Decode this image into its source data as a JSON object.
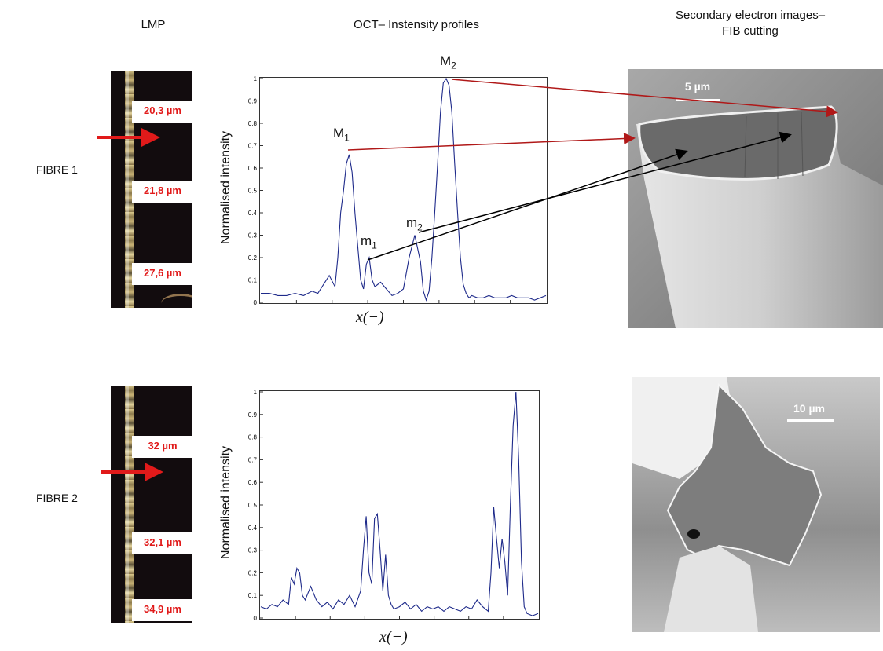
{
  "headers": {
    "lmp": "LMP",
    "oct": "OCT– Instensity profiles",
    "sem_line1": "Secondary electron images–",
    "sem_line2": "FIB cutting"
  },
  "rows": [
    {
      "label": "FIBRE 1",
      "measurements": [
        "20,3 µm",
        "21,8 µm",
        "27,6 µm"
      ],
      "scale_bar": "5 µm"
    },
    {
      "label": "FIBRE 2",
      "measurements": [
        "32 µm",
        "32,1 µm",
        "34,9 µm"
      ],
      "scale_bar": "10 µm"
    }
  ],
  "peak_labels": {
    "M1": "M",
    "M1_sub": "1",
    "M2": "M",
    "M2_sub": "2",
    "m1": "m",
    "m1_sub": "1",
    "m2": "m",
    "m2_sub": "2"
  },
  "colors": {
    "measurement_text": "#e11a1a",
    "arrow_red": "#e11a1a",
    "arrow_dark_red": "#b01818",
    "arrow_black": "#000000",
    "series": "#1e2a8a"
  },
  "chart_data": [
    {
      "type": "line",
      "xlabel": "x(−)",
      "ylabel": "Normalised intensity",
      "ylim": [
        0,
        1
      ],
      "yticks": [
        "0",
        "0.1",
        "0.2",
        "0.3",
        "0.4",
        "0.5",
        "0.6",
        "0.7",
        "0.8",
        "0.9",
        "1"
      ],
      "x": [
        0,
        3,
        6,
        9,
        12,
        15,
        18,
        20,
        22,
        24,
        26,
        27,
        28,
        29,
        30,
        31,
        32,
        33,
        34,
        35,
        36,
        37,
        38,
        39,
        40,
        42,
        44,
        46,
        48,
        50,
        52,
        54,
        56,
        57,
        58,
        59,
        60,
        61,
        62,
        63,
        64,
        65,
        66,
        67,
        68,
        69,
        70,
        71,
        72,
        73,
        74,
        76,
        78,
        80,
        82,
        84,
        86,
        88,
        90,
        92,
        94,
        96,
        98,
        100
      ],
      "series": [
        {
          "values": [
            0.04,
            0.04,
            0.03,
            0.03,
            0.04,
            0.03,
            0.05,
            0.04,
            0.08,
            0.12,
            0.07,
            0.2,
            0.4,
            0.5,
            0.62,
            0.66,
            0.58,
            0.4,
            0.25,
            0.1,
            0.06,
            0.17,
            0.2,
            0.1,
            0.07,
            0.09,
            0.06,
            0.03,
            0.04,
            0.06,
            0.2,
            0.3,
            0.18,
            0.05,
            0.01,
            0.05,
            0.2,
            0.4,
            0.62,
            0.85,
            0.98,
            1.0,
            0.97,
            0.85,
            0.62,
            0.4,
            0.2,
            0.08,
            0.04,
            0.02,
            0.03,
            0.02,
            0.02,
            0.03,
            0.02,
            0.02,
            0.02,
            0.03,
            0.02,
            0.02,
            0.02,
            0.01,
            0.02,
            0.03
          ]
        }
      ]
    },
    {
      "type": "line",
      "xlabel": "x(−)",
      "ylabel": "Normalised intensity",
      "ylim": [
        0,
        1
      ],
      "yticks": [
        "0",
        "0.1",
        "0.2",
        "0.3",
        "0.4",
        "0.5",
        "0.6",
        "0.7",
        "0.8",
        "0.9",
        "1"
      ],
      "x": [
        0,
        2,
        4,
        6,
        8,
        10,
        11,
        12,
        13,
        14,
        15,
        16,
        18,
        20,
        22,
        24,
        26,
        28,
        30,
        32,
        34,
        36,
        37,
        38,
        39,
        40,
        41,
        42,
        43,
        44,
        45,
        46,
        47,
        48,
        50,
        52,
        54,
        56,
        58,
        60,
        62,
        64,
        66,
        68,
        70,
        72,
        74,
        76,
        78,
        80,
        82,
        83,
        84,
        85,
        86,
        87,
        88,
        89,
        90,
        91,
        92,
        93,
        94,
        95,
        96,
        98,
        100
      ],
      "series": [
        {
          "values": [
            0.05,
            0.04,
            0.06,
            0.05,
            0.08,
            0.06,
            0.18,
            0.15,
            0.22,
            0.2,
            0.1,
            0.08,
            0.14,
            0.08,
            0.05,
            0.07,
            0.04,
            0.08,
            0.06,
            0.1,
            0.05,
            0.12,
            0.3,
            0.45,
            0.2,
            0.15,
            0.44,
            0.46,
            0.3,
            0.12,
            0.28,
            0.1,
            0.06,
            0.04,
            0.05,
            0.07,
            0.04,
            0.06,
            0.03,
            0.05,
            0.04,
            0.05,
            0.03,
            0.05,
            0.04,
            0.03,
            0.05,
            0.04,
            0.08,
            0.05,
            0.03,
            0.2,
            0.49,
            0.35,
            0.22,
            0.35,
            0.25,
            0.1,
            0.5,
            0.85,
            1.0,
            0.7,
            0.25,
            0.05,
            0.02,
            0.01,
            0.02
          ]
        }
      ]
    }
  ]
}
